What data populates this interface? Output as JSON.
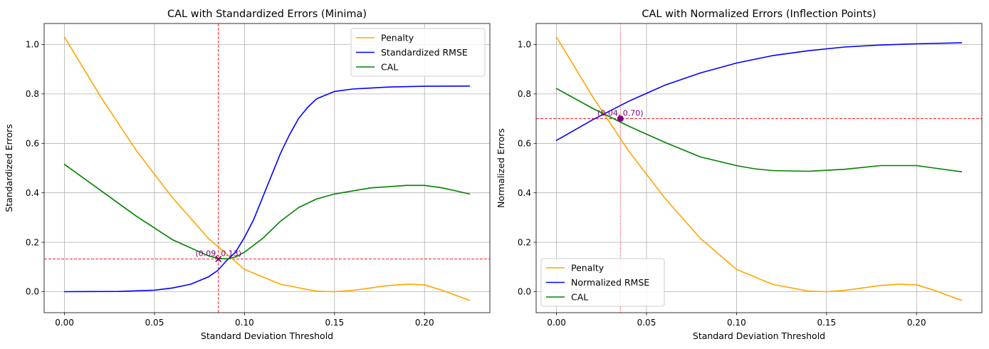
{
  "chart_data": [
    {
      "type": "line",
      "title": "CAL with Standardized Errors (Minima)",
      "xlabel": "Standard Deviation Threshold",
      "ylabel": "Standardized Errors",
      "xlim": [
        -0.0113,
        0.2363
      ],
      "ylim": [
        -0.085,
        1.085
      ],
      "xticks": [
        0.0,
        0.05,
        0.1,
        0.15,
        0.2
      ],
      "xtick_labels": [
        "0.00",
        "0.05",
        "0.10",
        "0.15",
        "0.20"
      ],
      "yticks": [
        0.0,
        0.2,
        0.4,
        0.6,
        0.8,
        1.0
      ],
      "ytick_labels": [
        "0.0",
        "0.2",
        "0.4",
        "0.6",
        "0.8",
        "1.0"
      ],
      "grid": true,
      "legend": {
        "position": "top-right",
        "entries": [
          "Penalty",
          "Standardized RMSE",
          "CAL"
        ]
      },
      "series": [
        {
          "name": "Penalty",
          "color": "#ffa500",
          "x": [
            0.0,
            0.02,
            0.04,
            0.06,
            0.08,
            0.1,
            0.12,
            0.14,
            0.15,
            0.16,
            0.18,
            0.19,
            0.2,
            0.21,
            0.225
          ],
          "y": [
            1.03,
            0.79,
            0.57,
            0.38,
            0.215,
            0.09,
            0.03,
            0.002,
            0.0,
            0.005,
            0.025,
            0.03,
            0.028,
            0.005,
            -0.035
          ]
        },
        {
          "name": "Standardized RMSE",
          "color": "#0000ff",
          "x": [
            0.0,
            0.03,
            0.05,
            0.06,
            0.07,
            0.08,
            0.085,
            0.09,
            0.095,
            0.1,
            0.105,
            0.11,
            0.115,
            0.12,
            0.125,
            0.13,
            0.135,
            0.14,
            0.15,
            0.16,
            0.18,
            0.2,
            0.225
          ],
          "y": [
            0.0,
            0.001,
            0.006,
            0.015,
            0.03,
            0.06,
            0.085,
            0.125,
            0.16,
            0.22,
            0.29,
            0.38,
            0.47,
            0.56,
            0.635,
            0.7,
            0.745,
            0.78,
            0.81,
            0.82,
            0.828,
            0.831,
            0.832
          ]
        },
        {
          "name": "CAL",
          "color": "#008000",
          "x": [
            0.0,
            0.02,
            0.04,
            0.06,
            0.08,
            0.085,
            0.09,
            0.095,
            0.1,
            0.11,
            0.12,
            0.13,
            0.14,
            0.15,
            0.17,
            0.19,
            0.2,
            0.21,
            0.225
          ],
          "y": [
            0.515,
            0.41,
            0.305,
            0.21,
            0.145,
            0.135,
            0.133,
            0.14,
            0.16,
            0.215,
            0.285,
            0.34,
            0.375,
            0.395,
            0.42,
            0.43,
            0.43,
            0.42,
            0.395
          ]
        }
      ],
      "marker": {
        "x": 0.0855,
        "y": 0.132,
        "symbol": "x",
        "color": "#800080",
        "label": "(0.09, 0.13)"
      },
      "ref_lines": {
        "vline_x": 0.0855,
        "hline_y": 0.132,
        "color": "#ff0000"
      }
    },
    {
      "type": "line",
      "title": "CAL with Normalized Errors (Inflection Points)",
      "xlabel": "Standard Deviation Threshold",
      "ylabel": "Normalized Errors",
      "xlim": [
        -0.0113,
        0.2363
      ],
      "ylim": [
        -0.085,
        1.085
      ],
      "xticks": [
        0.0,
        0.05,
        0.1,
        0.15,
        0.2
      ],
      "xtick_labels": [
        "0.00",
        "0.05",
        "0.10",
        "0.15",
        "0.20"
      ],
      "yticks": [
        0.0,
        0.2,
        0.4,
        0.6,
        0.8,
        1.0
      ],
      "ytick_labels": [
        "0.0",
        "0.2",
        "0.4",
        "0.6",
        "0.8",
        "1.0"
      ],
      "grid": true,
      "legend": {
        "position": "bottom-left",
        "entries": [
          "Penalty",
          "Normalized RMSE",
          "CAL"
        ]
      },
      "series": [
        {
          "name": "Penalty",
          "color": "#ffa500",
          "x": [
            0.0,
            0.02,
            0.04,
            0.06,
            0.08,
            0.1,
            0.12,
            0.14,
            0.15,
            0.16,
            0.18,
            0.19,
            0.2,
            0.21,
            0.225
          ],
          "y": [
            1.03,
            0.79,
            0.57,
            0.38,
            0.215,
            0.09,
            0.03,
            0.002,
            0.0,
            0.005,
            0.025,
            0.03,
            0.028,
            0.005,
            -0.035
          ]
        },
        {
          "name": "Normalized RMSE",
          "color": "#0000ff",
          "x": [
            0.0,
            0.02,
            0.04,
            0.06,
            0.08,
            0.1,
            0.12,
            0.14,
            0.16,
            0.18,
            0.2,
            0.225
          ],
          "y": [
            0.612,
            0.695,
            0.77,
            0.835,
            0.885,
            0.925,
            0.955,
            0.975,
            0.99,
            0.998,
            1.003,
            1.007
          ]
        },
        {
          "name": "CAL",
          "color": "#008000",
          "x": [
            0.0,
            0.02,
            0.04,
            0.06,
            0.08,
            0.1,
            0.11,
            0.12,
            0.14,
            0.16,
            0.18,
            0.2,
            0.21,
            0.225
          ],
          "y": [
            0.822,
            0.742,
            0.67,
            0.605,
            0.545,
            0.51,
            0.497,
            0.49,
            0.487,
            0.495,
            0.51,
            0.51,
            0.5,
            0.485
          ]
        }
      ],
      "marker": {
        "x": 0.0355,
        "y": 0.7,
        "symbol": "o",
        "color": "#800080",
        "label": "(0.04, 0.70)"
      },
      "ref_lines": {
        "vline_x": 0.0355,
        "hline_y": 0.7,
        "color": "#ff0000"
      }
    }
  ]
}
